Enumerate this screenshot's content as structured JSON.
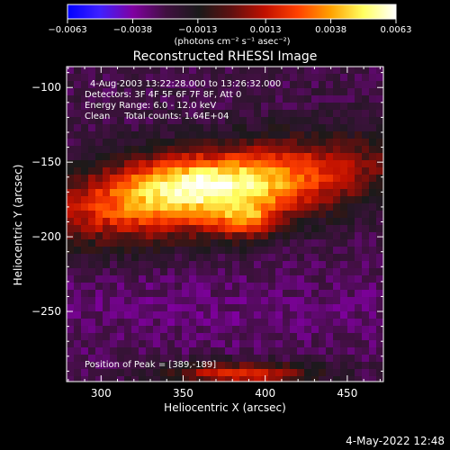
{
  "chart_data": {
    "type": "heatmap",
    "title": "Reconstructed RHESSI Image",
    "xlabel": "Heliocentric X (arcsec)",
    "ylabel": "Heliocentric Y (arcsec)",
    "xlim": [
      279,
      472
    ],
    "ylim": [
      -297,
      -86
    ],
    "xticks": [
      "300",
      "350",
      "400",
      "450"
    ],
    "xtick_values": [
      300,
      350,
      400,
      450
    ],
    "yticks": [
      "−100",
      "−150",
      "−200",
      "−250"
    ],
    "ytick_values": [
      -100,
      -150,
      -200,
      -250
    ],
    "colorbar": {
      "ticks": [
        "−0.0063",
        "−0.0038",
        "−0.0013",
        "0.0013",
        "0.0038",
        "0.0063"
      ],
      "tick_values": [
        -0.0063,
        -0.0038,
        -0.0013,
        0.0013,
        0.0038,
        0.0063
      ],
      "range": [
        -0.0063,
        0.0063
      ],
      "unit_label": "(photons cm⁻² s⁻¹ asec⁻²)",
      "colors": [
        "#0000ff",
        "#4020ff",
        "#8000a0",
        "#401040",
        "#1a1a1a",
        "#601010",
        "#c01000",
        "#ff4000",
        "#ffa000",
        "#ffff60",
        "#ffffff"
      ]
    },
    "annotations": {
      "time": "4-Aug-2003 13:22:28.000 to 13:26:32.000",
      "detectors": "Detectors: 3F 4F 5F 6F 7F 8F, Att 0",
      "energy": "Energy Range: 6.0 - 12.0 keV",
      "clean": "Clean     Total counts: 1.64E+04",
      "peak": "Position of Peak = [389,-189]"
    },
    "peak_position": [
      389,
      -189
    ],
    "grid": false,
    "legend": "colorbar-top"
  },
  "footer": {
    "datestamp": "4-May-2022 12:48"
  },
  "colors": {
    "background": "#000000",
    "text": "#ffffff"
  }
}
